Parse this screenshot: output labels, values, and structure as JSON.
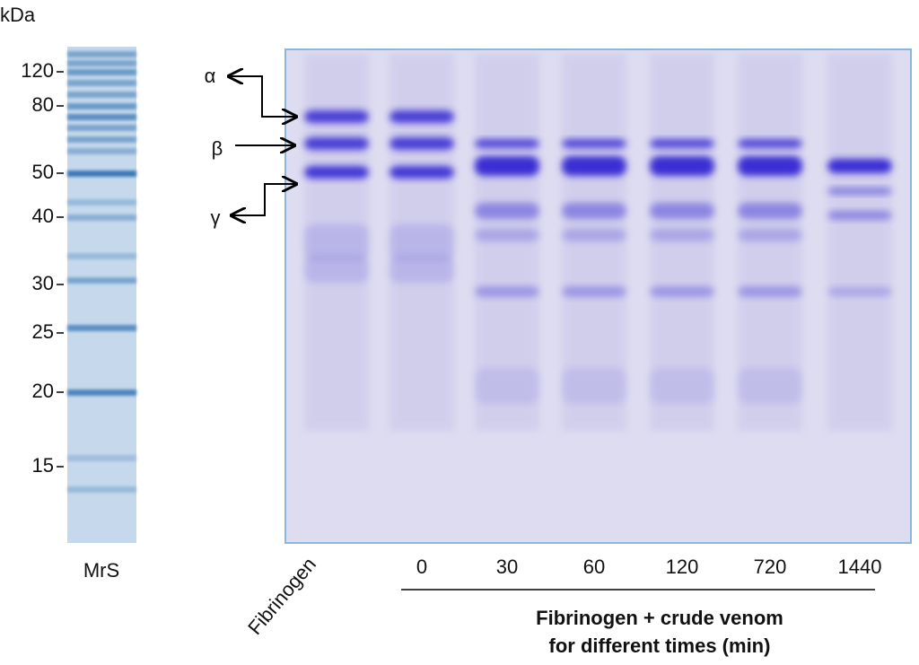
{
  "marker": {
    "unit": "kDa",
    "ticks": [
      "120",
      "80",
      "50",
      "40",
      "30",
      "25",
      "20",
      "15"
    ],
    "lane_label": "MrS"
  },
  "chains": [
    "α",
    "β",
    "γ"
  ],
  "lanes": {
    "control": "Fibrinogen",
    "times": [
      "0",
      "30",
      "60",
      "120",
      "720",
      "1440"
    ]
  },
  "caption": [
    "Fibrinogen + crude venom",
    "for different times (min)"
  ]
}
